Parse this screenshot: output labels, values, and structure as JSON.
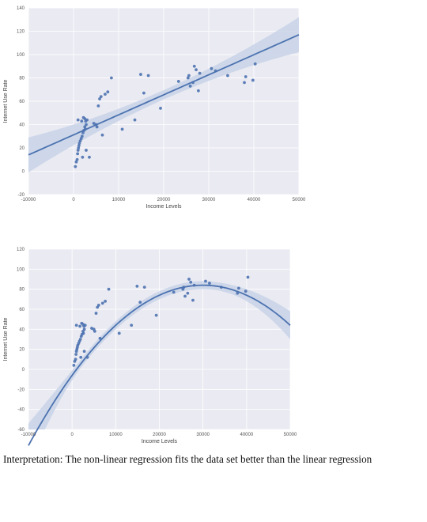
{
  "chart_data": [
    {
      "type": "scatter",
      "title": "",
      "xlabel": "Income Levels",
      "ylabel": "Internet Use Rate",
      "xlim": [
        -10000,
        50000
      ],
      "ylim": [
        -20,
        140
      ],
      "x_ticks": [
        -10000,
        0,
        10000,
        20000,
        30000,
        40000,
        50000
      ],
      "y_ticks": [
        -20,
        0,
        20,
        40,
        60,
        80,
        100,
        120,
        140
      ],
      "grid": true,
      "fit": {
        "kind": "linear",
        "line": [
          [
            -10000,
            14
          ],
          [
            50000,
            117
          ]
        ],
        "ci_halfwidth": [
          15,
          4,
          15
        ]
      },
      "colors": {
        "points": "#4c72b0",
        "line": "#4c72b0",
        "band": "#c8d3e8",
        "plot_bg": "#eaeaf2"
      },
      "points": [
        [
          400,
          4
        ],
        [
          600,
          8
        ],
        [
          800,
          10
        ],
        [
          900,
          15
        ],
        [
          1000,
          18
        ],
        [
          1100,
          20
        ],
        [
          1200,
          22
        ],
        [
          1300,
          24
        ],
        [
          1500,
          26
        ],
        [
          1700,
          28
        ],
        [
          1900,
          30
        ],
        [
          2100,
          33
        ],
        [
          2300,
          35
        ],
        [
          2500,
          38
        ],
        [
          2600,
          36
        ],
        [
          2800,
          40
        ],
        [
          3000,
          44
        ],
        [
          2200,
          46
        ],
        [
          2500,
          45
        ],
        [
          2700,
          43
        ],
        [
          1000,
          44
        ],
        [
          1800,
          43
        ],
        [
          2000,
          12
        ],
        [
          3500,
          12
        ],
        [
          2800,
          18
        ],
        [
          4500,
          41
        ],
        [
          5000,
          40
        ],
        [
          5200,
          38
        ],
        [
          5500,
          56
        ],
        [
          5800,
          62
        ],
        [
          6100,
          64
        ],
        [
          6400,
          31
        ],
        [
          7000,
          66
        ],
        [
          7600,
          68
        ],
        [
          8400,
          80
        ],
        [
          10800,
          36
        ],
        [
          13600,
          44
        ],
        [
          14900,
          83
        ],
        [
          15600,
          67
        ],
        [
          16600,
          82
        ],
        [
          19300,
          54
        ],
        [
          23300,
          77
        ],
        [
          25400,
          80
        ],
        [
          25600,
          82
        ],
        [
          25900,
          73
        ],
        [
          26500,
          76
        ],
        [
          27200,
          87
        ],
        [
          27700,
          69
        ],
        [
          28000,
          84
        ],
        [
          30600,
          88
        ],
        [
          31500,
          86
        ],
        [
          34200,
          82
        ],
        [
          37900,
          76
        ],
        [
          38200,
          81
        ],
        [
          39800,
          78
        ],
        [
          40300,
          92
        ],
        [
          26800,
          90
        ]
      ]
    },
    {
      "type": "scatter",
      "title": "",
      "xlabel": "Income Levels",
      "ylabel": "Internet Use Rate",
      "xlim": [
        -10000,
        50000
      ],
      "ylim": [
        -60,
        120
      ],
      "x_ticks": [
        -10000,
        0,
        10000,
        20000,
        30000,
        40000,
        50000
      ],
      "y_ticks": [
        -60,
        -40,
        -20,
        0,
        20,
        40,
        60,
        80,
        100,
        120
      ],
      "grid": true,
      "fit": {
        "kind": "quadratic",
        "vertex": [
          30000,
          84
        ],
        "a": -1e-07
      },
      "colors": {
        "points": "#4c72b0",
        "line": "#4c72b0",
        "band": "#c8d3e8",
        "plot_bg": "#eaeaf2"
      },
      "points": [
        [
          400,
          4
        ],
        [
          600,
          8
        ],
        [
          800,
          10
        ],
        [
          900,
          15
        ],
        [
          1000,
          18
        ],
        [
          1100,
          20
        ],
        [
          1200,
          22
        ],
        [
          1300,
          24
        ],
        [
          1500,
          26
        ],
        [
          1700,
          28
        ],
        [
          1900,
          30
        ],
        [
          2100,
          33
        ],
        [
          2300,
          35
        ],
        [
          2500,
          38
        ],
        [
          2600,
          36
        ],
        [
          2800,
          40
        ],
        [
          3000,
          44
        ],
        [
          2200,
          46
        ],
        [
          2500,
          45
        ],
        [
          2700,
          43
        ],
        [
          1000,
          44
        ],
        [
          1800,
          43
        ],
        [
          2000,
          12
        ],
        [
          3500,
          12
        ],
        [
          2800,
          18
        ],
        [
          4500,
          41
        ],
        [
          5000,
          40
        ],
        [
          5200,
          38
        ],
        [
          5500,
          56
        ],
        [
          5800,
          62
        ],
        [
          6100,
          64
        ],
        [
          6400,
          31
        ],
        [
          7000,
          66
        ],
        [
          7600,
          68
        ],
        [
          8400,
          80
        ],
        [
          10800,
          36
        ],
        [
          13600,
          44
        ],
        [
          14900,
          83
        ],
        [
          15600,
          67
        ],
        [
          16600,
          82
        ],
        [
          19300,
          54
        ],
        [
          23300,
          77
        ],
        [
          25400,
          80
        ],
        [
          25600,
          82
        ],
        [
          25900,
          73
        ],
        [
          26500,
          76
        ],
        [
          27200,
          87
        ],
        [
          27700,
          69
        ],
        [
          28000,
          84
        ],
        [
          30600,
          88
        ],
        [
          31500,
          86
        ],
        [
          34200,
          82
        ],
        [
          37900,
          76
        ],
        [
          38200,
          81
        ],
        [
          39800,
          78
        ],
        [
          40300,
          92
        ],
        [
          26800,
          90
        ]
      ]
    }
  ],
  "interpretation": "Interpretation: The non-linear regression fits the data set better than the linear regression"
}
